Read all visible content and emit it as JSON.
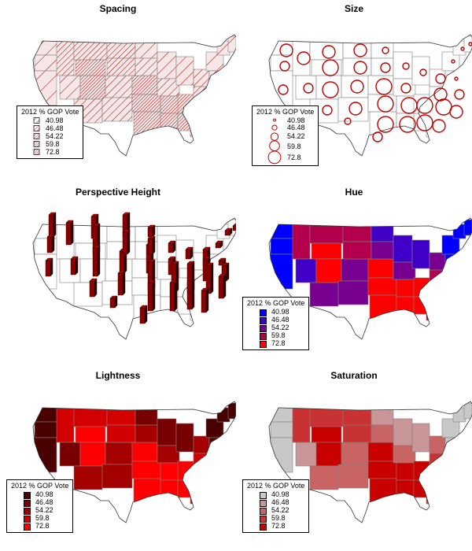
{
  "legend_title": "2012 % GOP Vote",
  "legend_values": [
    "40.98",
    "46.48",
    "54.22",
    "59.8",
    "72.8"
  ],
  "panels": [
    {
      "title": "Spacing",
      "encoding": "hatch-spacing",
      "hatch_gaps": [
        14,
        10,
        7,
        5,
        3
      ]
    },
    {
      "title": "Size",
      "encoding": "circle-size",
      "circle_radii": [
        2,
        4,
        6,
        8,
        10
      ]
    },
    {
      "title": "Perspective Height",
      "encoding": "bar-height"
    },
    {
      "title": "Hue",
      "encoding": "hue",
      "colors": [
        "#0000ff",
        "#4000c8",
        "#780090",
        "#b4004c",
        "#ff0000"
      ]
    },
    {
      "title": "Lightness",
      "encoding": "lightness",
      "colors": [
        "#4a0000",
        "#780000",
        "#a50000",
        "#d20000",
        "#ff0000"
      ]
    },
    {
      "title": "Saturation",
      "encoding": "saturation",
      "colors": [
        "#c8c8c8",
        "#c89696",
        "#c86464",
        "#c83232",
        "#c80000"
      ]
    }
  ],
  "state_colors_hint": "levels 0-4 map to legend_values"
}
